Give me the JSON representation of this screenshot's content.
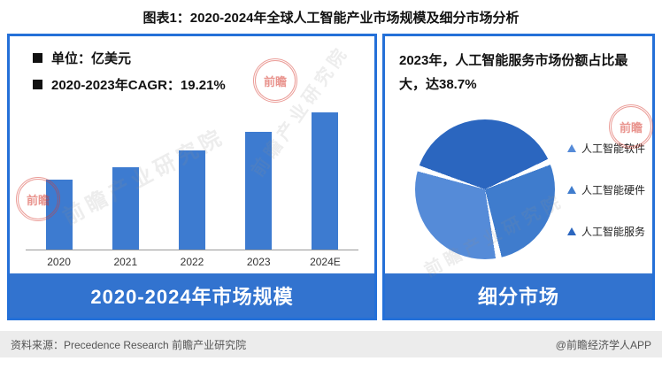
{
  "title": "图表1：2020-2024年全球人工智能产业市场规模及细分市场分析",
  "left_panel": {
    "legend": [
      {
        "label": "单位：亿美元"
      },
      {
        "label": "2020-2023年CAGR：19.21%"
      }
    ],
    "banner": "2020-2024年市场规模"
  },
  "right_panel": {
    "caption": "2023年，人工智能服务市场份额占比最大，达38.7%",
    "legend": [
      "人工智能软件",
      "人工智能硬件",
      "人工智能服务"
    ],
    "banner": "细分市场"
  },
  "footer": {
    "source": "资料来源：Precedence Research 前瞻产业研究院",
    "credit": "@前瞻经济学人APP"
  },
  "watermark": {
    "logo_label": "前瞻",
    "text": "前瞻产业研究院"
  },
  "colors": {
    "panel_border": "#2470d8",
    "banner_blue": "#3273cf",
    "bar_blue": "#3d7bd0"
  },
  "chart_data": [
    {
      "type": "bar",
      "title": "2020-2024年市场规模",
      "unit": "亿美元",
      "categories": [
        "2020",
        "2021",
        "2022",
        "2023",
        "2024E"
      ],
      "values": [
        100,
        118,
        142,
        169,
        197
      ],
      "values_estimated": true,
      "cagr_2020_2023": "19.21%",
      "ylim": [
        0,
        210
      ],
      "grid": false,
      "legend_position": "top-left"
    },
    {
      "type": "pie",
      "title": "细分市场",
      "labels": [
        "人工智能软件",
        "人工智能硬件",
        "人工智能服务"
      ],
      "values": [
        33.0,
        28.3,
        38.7
      ],
      "values_estimated": true,
      "highlight": "2023年人工智能服务占比最大，达38.7%",
      "colors": [
        "#558bd8",
        "#3f7ccd",
        "#2b66bf"
      ],
      "legend_position": "right"
    }
  ]
}
